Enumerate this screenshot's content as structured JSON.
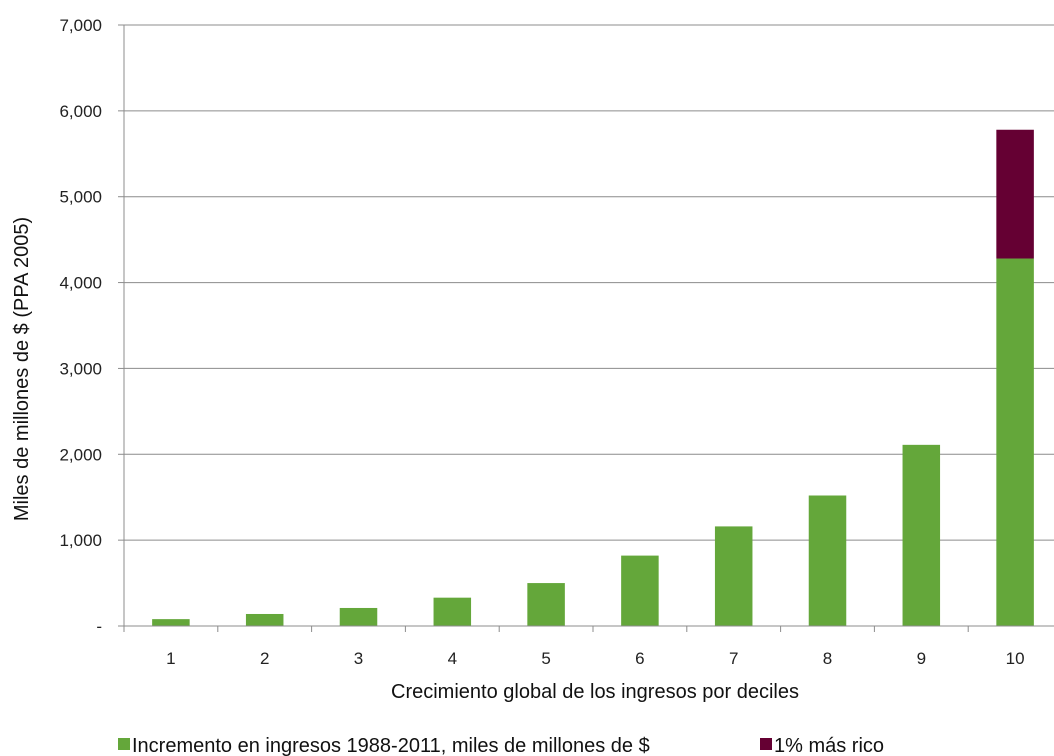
{
  "chart_data": {
    "type": "bar",
    "stacked": true,
    "title": "",
    "xlabel": "Crecimiento global de los ingresos por deciles",
    "ylabel": "Miles de millones de $ (PPA 2005)",
    "ylim": [
      0,
      7000
    ],
    "yticks": [
      0,
      1000,
      2000,
      3000,
      4000,
      5000,
      6000,
      7000
    ],
    "ytick_labels": [
      "-",
      "1,000",
      "2,000",
      "3,000",
      "4,000",
      "5,000",
      "6,000",
      "7,000"
    ],
    "grid": true,
    "legend_position": "bottom",
    "categories": [
      "1",
      "2",
      "3",
      "4",
      "5",
      "6",
      "7",
      "8",
      "9",
      "10"
    ],
    "series": [
      {
        "name": "Incremento en ingresos 1988-2011, miles de millones de $",
        "color": "#64A73A",
        "values": [
          80,
          140,
          210,
          330,
          500,
          820,
          1160,
          1520,
          2110,
          4280
        ]
      },
      {
        "name": "1% más rico",
        "color": "#650033",
        "values": [
          0,
          0,
          0,
          0,
          0,
          0,
          0,
          0,
          0,
          1500
        ]
      }
    ]
  }
}
